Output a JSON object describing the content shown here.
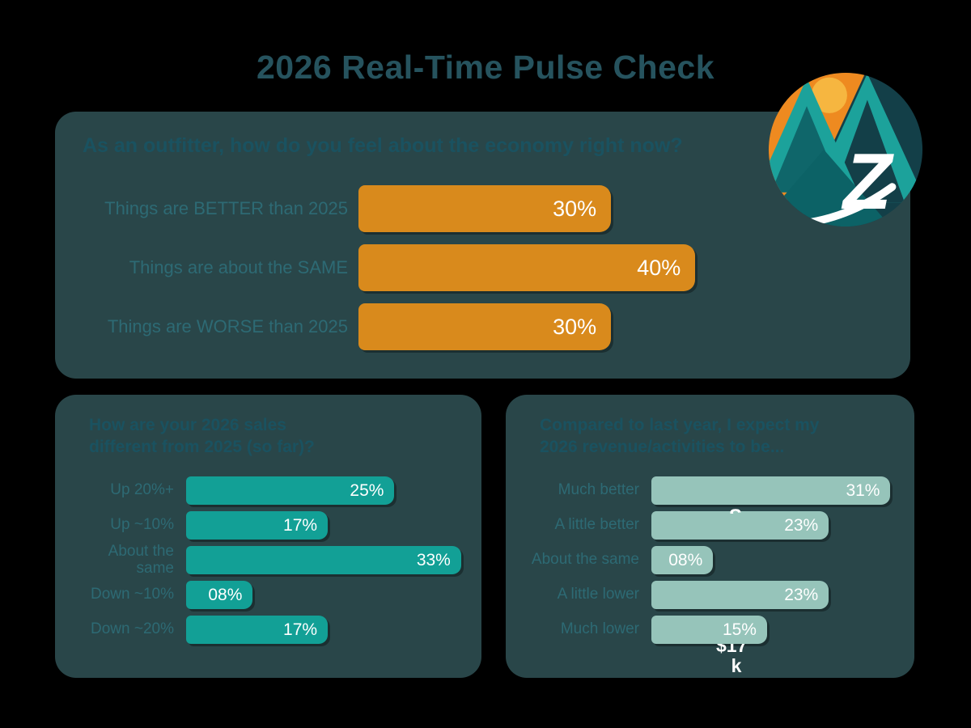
{
  "page": {
    "title": "2026 Real-Time Pulse Check",
    "background": "#000000",
    "panel_color": "#294649",
    "title_color": "#26535E",
    "label_color": "#2D6A74",
    "value_text_color": "#FFFFFF"
  },
  "logo": {
    "icon": "mountain-sun-z-logo",
    "colors": {
      "circle_bg": "#133F48",
      "orange_sky": "#EE8A20",
      "sun": "#F6B640",
      "mountain_teal": "#1CA29B",
      "mountain_dark": "#0C6266",
      "z_letter": "#FFFFFF"
    }
  },
  "chart_data": [
    {
      "type": "bar",
      "orientation": "horizontal",
      "title": "As an outfitter, how do you feel about the economy right now?",
      "categories": [
        "Things are BETTER than 2025",
        "Things are about the SAME",
        "Things are WORSE than 2025"
      ],
      "values": [
        30,
        40,
        30
      ],
      "value_labels": [
        "30%",
        "40%",
        "30%"
      ],
      "bar_color": "#D98A1C",
      "axis_max": 64,
      "grid": false,
      "legend": false
    },
    {
      "type": "bar",
      "orientation": "horizontal",
      "title": "How are your 2026 sales different from 2025 (so far)?",
      "categories": [
        "Up 20%+",
        "Up ~10%",
        "About the same",
        "Down ~10%",
        "Down ~20%"
      ],
      "values": [
        25,
        17,
        33,
        8,
        17
      ],
      "value_labels": [
        "25%",
        "17%",
        "33%",
        "08%",
        "17%"
      ],
      "bar_color": "#12A096",
      "axis_max": 33.5,
      "grid": false,
      "legend": false
    },
    {
      "type": "bar",
      "orientation": "horizontal",
      "title": "Compared to last year, I expect my 2026 revenue/activities to be...",
      "categories": [
        "Much better",
        "A little better",
        "About the same",
        "A little lower",
        "Much lower"
      ],
      "values": [
        31,
        23,
        8,
        23,
        15
      ],
      "value_labels": [
        "31%",
        "23%",
        "08%",
        "23%",
        "15%"
      ],
      "bar_color": "#96C4BA",
      "axis_max": 32,
      "grid": false,
      "legend": false
    }
  ],
  "stray_text": {
    "between_top_bars": "S",
    "below_last_bar_line1": "$17",
    "below_last_bar_line2": "k"
  }
}
